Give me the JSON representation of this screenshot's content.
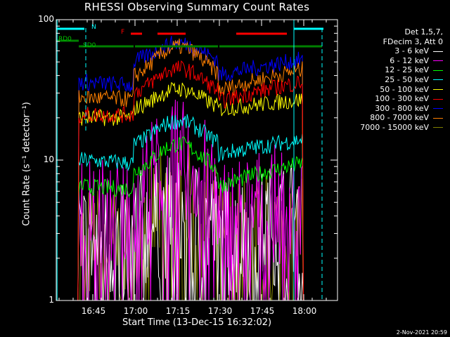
{
  "chart_data": {
    "type": "line",
    "title": "RHESSI Observing Summary Count Rates",
    "xlabel": "Start Time (13-Dec-15 16:32:02)",
    "ylabel": "Count Rate (s⁻¹ detector⁻¹)",
    "yscale": "log",
    "ylim": [
      1,
      100
    ],
    "yticks": [
      "1",
      "10",
      "100"
    ],
    "xlim_minutes": [
      0,
      100
    ],
    "xticks": [
      "16:45",
      "17:00",
      "17:15",
      "17:30",
      "17:45",
      "18:00"
    ],
    "xtick_minutes": [
      13,
      28,
      43,
      58,
      73,
      88
    ],
    "grid": false,
    "legend_position": "top-right",
    "legend_header": [
      "Det 1,5,7,",
      "FDecim 3, Att 0"
    ],
    "series": [
      {
        "name": "3 - 6 keV",
        "color": "#000000",
        "values": [
          1,
          1,
          2.8,
          2.5,
          3,
          4,
          2.5,
          2.5,
          4,
          1
        ]
      },
      {
        "name": "6 - 12 keV",
        "color": "#ff00ff",
        "values": [
          1,
          1,
          4.5,
          4,
          5,
          10,
          4,
          4,
          5,
          1
        ]
      },
      {
        "name": "12 - 25 keV",
        "color": "#00ff00",
        "values": [
          1,
          1,
          6.5,
          6.2,
          7.5,
          13,
          6.5,
          6.5,
          9.5,
          1
        ]
      },
      {
        "name": "25 - 50 keV",
        "color": "#00ffff",
        "values": [
          1,
          1,
          10,
          9.5,
          12,
          19,
          11,
          10,
          14,
          1
        ]
      },
      {
        "name": "50 - 100 keV",
        "color": "#ffff00",
        "values": [
          1,
          1,
          20,
          20,
          22,
          32,
          23,
          20,
          27,
          1
        ]
      },
      {
        "name": "100 - 300 keV",
        "color": "#ff0000",
        "values": [
          1,
          1,
          21,
          21,
          28,
          45,
          26,
          22,
          36,
          1
        ]
      },
      {
        "name": "300 - 800 keV",
        "color": "#0000ff",
        "values": [
          1,
          1,
          36,
          34,
          48,
          68,
          40,
          38,
          52,
          1
        ]
      },
      {
        "name": "800 - 7000 keV",
        "color": "#ff8000",
        "values": [
          1,
          1,
          28,
          27,
          36,
          64,
          31,
          29,
          44,
          1
        ]
      },
      {
        "name": "7000 - 15000 keV",
        "color": "#808000",
        "values": [
          1,
          1,
          2.5,
          2.5,
          3,
          5,
          2.5,
          2.5,
          3.5,
          1
        ]
      }
    ],
    "flags": [
      {
        "label": "N",
        "color": "#00ffff"
      },
      {
        "label": "F",
        "color": "#ff0000"
      },
      {
        "label": "RD0",
        "color": "#008000"
      },
      {
        "label": "SD0",
        "color": "#008000"
      }
    ]
  },
  "legend": {
    "header1": "Det 1,5,7,",
    "header2": "FDecim 3, Att 0",
    "items": [
      {
        "label": "3 - 6 keV",
        "color": "#ffffff"
      },
      {
        "label": "6 - 12 keV",
        "color": "#ff00ff"
      },
      {
        "label": "12 - 25 keV",
        "color": "#00ff00"
      },
      {
        "label": "25 - 50 keV",
        "color": "#00ffff"
      },
      {
        "label": "50 - 100 keV",
        "color": "#ffff00"
      },
      {
        "label": "100 - 300 keV",
        "color": "#ff0000"
      },
      {
        "label": "300 - 800 keV",
        "color": "#0000ff"
      },
      {
        "label": "800 - 7000 keV",
        "color": "#ff8000"
      },
      {
        "label": "7000 - 15000 keV",
        "color": "#808000"
      }
    ]
  },
  "footer": {
    "date_stamp": "2-Nov-2021 20:59"
  }
}
